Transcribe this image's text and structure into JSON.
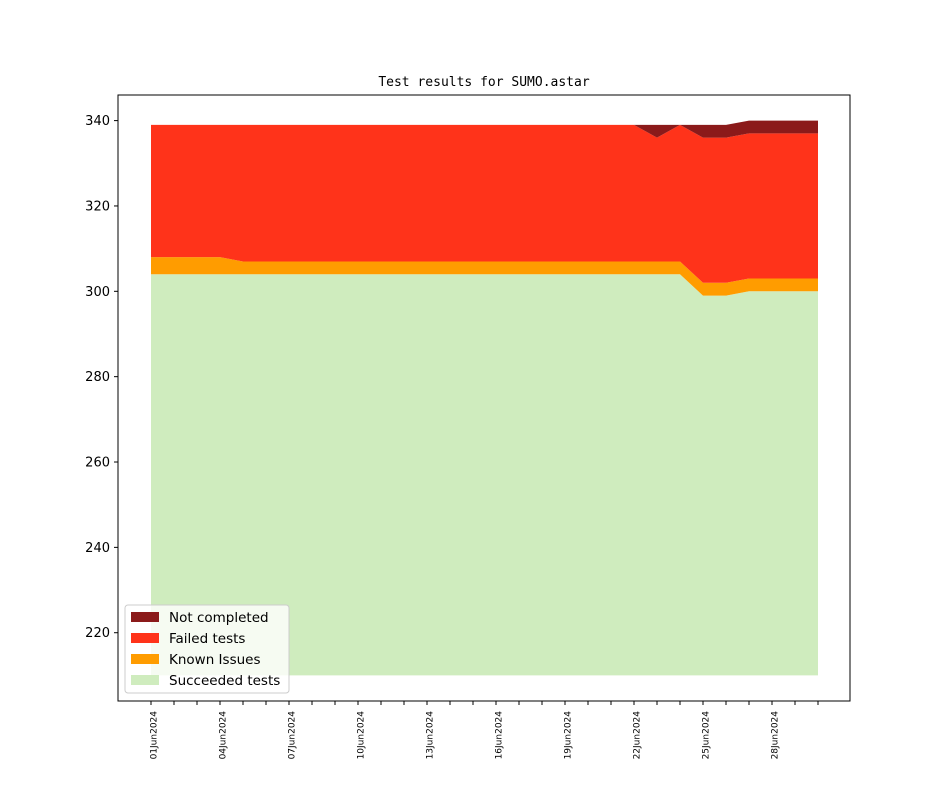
{
  "chart_data": {
    "type": "area",
    "title": "Test results for SUMO.astar",
    "xlabel": "",
    "ylabel": "",
    "baseline": 210,
    "ylim": [
      204,
      346
    ],
    "yticks": [
      220,
      240,
      260,
      280,
      300,
      320,
      340
    ],
    "x": [
      "01Jun2024",
      "02Jun2024",
      "03Jun2024",
      "04Jun2024",
      "05Jun2024",
      "06Jun2024",
      "07Jun2024",
      "08Jun2024",
      "09Jun2024",
      "10Jun2024",
      "11Jun2024",
      "12Jun2024",
      "13Jun2024",
      "14Jun2024",
      "15Jun2024",
      "16Jun2024",
      "17Jun2024",
      "18Jun2024",
      "19Jun2024",
      "20Jun2024",
      "21Jun2024",
      "22Jun2024",
      "23Jun2024",
      "24Jun2024",
      "25Jun2024",
      "26Jun2024",
      "27Jun2024",
      "28Jun2024",
      "29Jun2024",
      "30Jun2024"
    ],
    "xtick_labels": [
      "01Jun2024",
      "04Jun2024",
      "07Jun2024",
      "10Jun2024",
      "13Jun2024",
      "16Jun2024",
      "19Jun2024",
      "22Jun2024",
      "25Jun2024",
      "28Jun2024"
    ],
    "series": [
      {
        "name": "Succeeded tests",
        "color": "#cfecbe",
        "values": [
          304,
          304,
          304,
          304,
          304,
          304,
          304,
          304,
          304,
          304,
          304,
          304,
          304,
          304,
          304,
          304,
          304,
          304,
          304,
          304,
          304,
          304,
          304,
          304,
          299,
          299,
          300,
          300,
          300,
          300
        ]
      },
      {
        "name": "Known Issues",
        "color": "#ff9c00",
        "values": [
          4,
          4,
          4,
          4,
          3,
          3,
          3,
          3,
          3,
          3,
          3,
          3,
          3,
          3,
          3,
          3,
          3,
          3,
          3,
          3,
          3,
          3,
          3,
          3,
          3,
          3,
          3,
          3,
          3,
          3
        ]
      },
      {
        "name": "Failed tests",
        "color": "#ff331a",
        "values": [
          31,
          31,
          31,
          31,
          32,
          32,
          32,
          32,
          32,
          32,
          32,
          32,
          32,
          32,
          32,
          32,
          32,
          32,
          32,
          32,
          32,
          32,
          29,
          32,
          34,
          34,
          34,
          34,
          34,
          34
        ]
      },
      {
        "name": "Not completed",
        "color": "#8b1a1a",
        "values": [
          0,
          0,
          0,
          0,
          0,
          0,
          0,
          0,
          0,
          0,
          0,
          0,
          0,
          0,
          0,
          0,
          0,
          0,
          0,
          0,
          0,
          0,
          3,
          0,
          3,
          3,
          3,
          3,
          3,
          3
        ]
      }
    ],
    "legend": {
      "placement": "lower-left",
      "entries": [
        "Not completed",
        "Failed tests",
        "Known Issues",
        "Succeeded tests"
      ]
    },
    "grid": false
  }
}
